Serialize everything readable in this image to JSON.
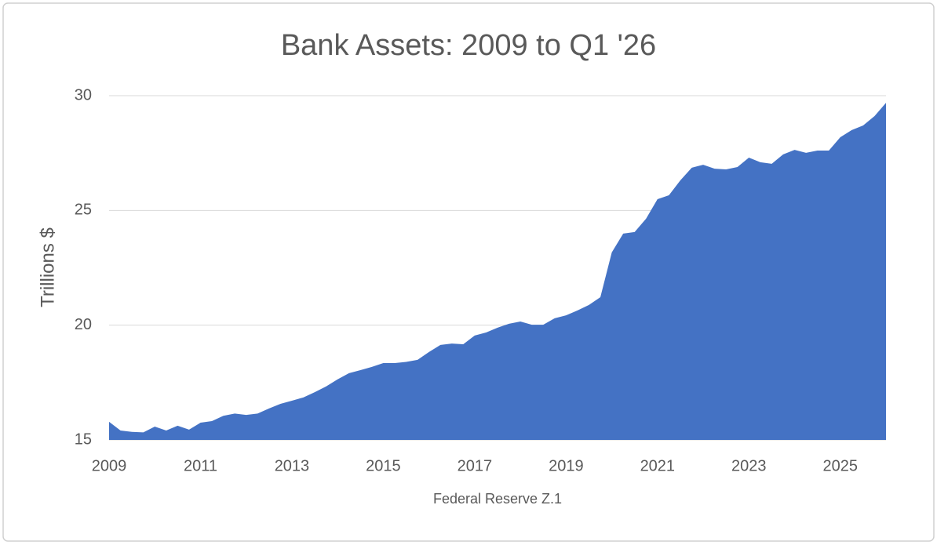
{
  "chart_data": {
    "type": "area",
    "title": "Bank Assets: 2009 to Q1 '26",
    "y_label": "Trillions $",
    "x_label": "Federal Reserve Z.1",
    "x": [
      2009,
      2009.25,
      2009.5,
      2009.75,
      2010,
      2010.25,
      2010.5,
      2010.75,
      2011,
      2011.25,
      2011.5,
      2011.75,
      2012,
      2012.25,
      2012.5,
      2012.75,
      2013,
      2013.25,
      2013.5,
      2013.75,
      2014,
      2014.25,
      2014.5,
      2014.75,
      2015,
      2015.25,
      2015.5,
      2015.75,
      2016,
      2016.25,
      2016.5,
      2016.75,
      2017,
      2017.25,
      2017.5,
      2017.75,
      2018,
      2018.25,
      2018.5,
      2018.75,
      2019,
      2019.25,
      2019.5,
      2019.75,
      2020,
      2020.25,
      2020.5,
      2020.75,
      2021,
      2021.25,
      2021.5,
      2021.75,
      2022,
      2022.25,
      2022.5,
      2022.75,
      2023,
      2023.25,
      2023.5,
      2023.75,
      2024,
      2024.25,
      2024.5,
      2024.75,
      2025,
      2025.25,
      2025.5,
      2025.75,
      2026
    ],
    "values": [
      15.79,
      15.41,
      15.35,
      15.33,
      15.58,
      15.41,
      15.62,
      15.45,
      15.75,
      15.82,
      16.05,
      16.15,
      16.09,
      16.15,
      16.37,
      16.57,
      16.71,
      16.85,
      17.08,
      17.33,
      17.64,
      17.91,
      18.04,
      18.18,
      18.35,
      18.35,
      18.4,
      18.49,
      18.83,
      19.14,
      19.2,
      19.17,
      19.55,
      19.68,
      19.89,
      20.06,
      20.16,
      20.02,
      20.02,
      20.3,
      20.43,
      20.64,
      20.88,
      21.22,
      23.17,
      23.99,
      24.06,
      24.64,
      25.49,
      25.66,
      26.31,
      26.86,
      26.99,
      26.82,
      26.79,
      26.89,
      27.3,
      27.1,
      27.03,
      27.44,
      27.64,
      27.51,
      27.61,
      27.61,
      28.19,
      28.5,
      28.7,
      29.11,
      29.69
    ],
    "color": "#4472c4",
    "xlim": [
      2009,
      2026
    ],
    "xticks": [
      2009,
      2011,
      2013,
      2015,
      2017,
      2019,
      2021,
      2023,
      2025
    ],
    "ylim": [
      15,
      30
    ],
    "yticks": [
      15,
      20,
      25,
      30
    ],
    "grid": true
  }
}
